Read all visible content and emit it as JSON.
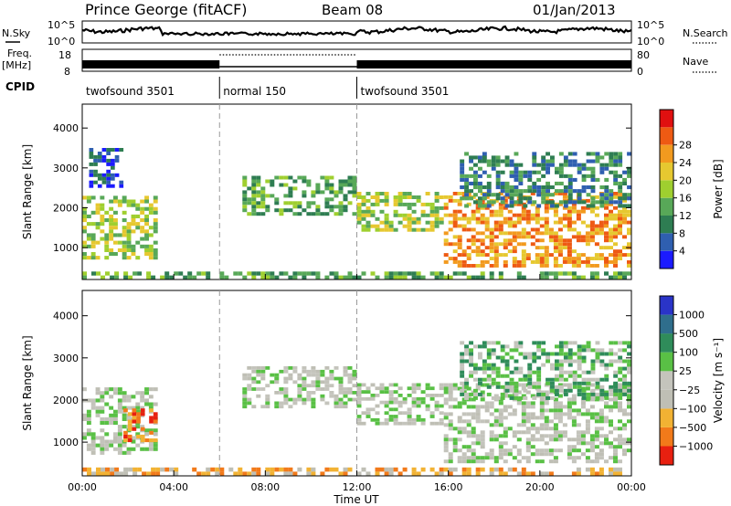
{
  "header": {
    "station": "Prince George (fitACF)",
    "beam": "Beam 08",
    "date": "01/Jan/2013"
  },
  "noise_panel": {
    "left_label": "N.Sky",
    "right_label": "N.Search",
    "left_ticks": [
      "10^5",
      "10^0"
    ],
    "right_ticks": [
      "10^5",
      "10^0"
    ]
  },
  "freq_panel": {
    "left_label_1": "Freq.",
    "left_label_2": "[MHz]",
    "right_label": "Nave",
    "left_ticks": [
      "18",
      "8"
    ],
    "right_ticks": [
      "80",
      "0"
    ]
  },
  "cpid": {
    "label": "CPID",
    "segments": [
      {
        "name": "twofsound 3501",
        "start_h": 0,
        "end_h": 6
      },
      {
        "name": "normal 150",
        "start_h": 6,
        "end_h": 12
      },
      {
        "name": "twofsound 3501",
        "start_h": 12,
        "end_h": 24
      }
    ]
  },
  "chart_data": [
    {
      "type": "heatmap",
      "title": "Power",
      "xlabel": "Time UT",
      "ylabel": "Slant Range [km]",
      "xlim": [
        0,
        24
      ],
      "ylim": [
        200,
        4600
      ],
      "x_ticks": [
        "00:00",
        "04:00",
        "08:00",
        "12:00",
        "16:00",
        "20:00",
        "00:00"
      ],
      "y_ticks": [
        1000,
        2000,
        3000,
        4000
      ],
      "colorbar": {
        "label": "Power [dB]",
        "ticks": [
          "4",
          "8",
          "12",
          "16",
          "20",
          "24",
          "28"
        ],
        "colors": [
          "#1b1bff",
          "#2f5fb0",
          "#2e7d52",
          "#58a858",
          "#9fcf2f",
          "#e6c830",
          "#f29a1f",
          "#ee5a13",
          "#e01010"
        ]
      },
      "regions": [
        {
          "t0": 0.0,
          "t1": 3.3,
          "r0": 700,
          "r1": 2300,
          "level": 4
        },
        {
          "t0": 0.3,
          "t1": 1.8,
          "r0": 2500,
          "r1": 3500,
          "level": 1
        },
        {
          "t0": 7.0,
          "t1": 12.0,
          "r0": 1800,
          "r1": 2800,
          "level": 3
        },
        {
          "t0": 12.0,
          "t1": 15.8,
          "r0": 1400,
          "r1": 2400,
          "level": 4
        },
        {
          "t0": 15.8,
          "t1": 24.0,
          "r0": 500,
          "r1": 2400,
          "level": 6
        },
        {
          "t0": 16.5,
          "t1": 24.0,
          "r0": 2000,
          "r1": 3400,
          "level": 2
        },
        {
          "t0": 0.0,
          "t1": 24.0,
          "r0": 200,
          "r1": 400,
          "level": 3
        }
      ]
    },
    {
      "type": "heatmap",
      "title": "Velocity",
      "xlabel": "Time UT",
      "ylabel": "Slant Range [km]",
      "xlim": [
        0,
        24
      ],
      "ylim": [
        200,
        4600
      ],
      "x_ticks": [
        "00:00",
        "04:00",
        "08:00",
        "12:00",
        "16:00",
        "20:00",
        "00:00"
      ],
      "y_ticks": [
        1000,
        2000,
        3000,
        4000
      ],
      "colorbar": {
        "label": "Velocity [m s⁻¹]",
        "ticks": [
          "1000",
          "500",
          "100",
          "25",
          "−25",
          "−100",
          "−500",
          "−1000"
        ],
        "colors": [
          "#2a34c8",
          "#2f6e8c",
          "#2f8c5a",
          "#59c045",
          "#c4c4bc",
          "#bfbfb5",
          "#f2b233",
          "#f27a1a",
          "#e82010"
        ]
      },
      "regions": [
        {
          "t0": 0.0,
          "t1": 3.3,
          "r0": 700,
          "r1": 2300,
          "level": 4
        },
        {
          "t0": 1.8,
          "t1": 3.3,
          "r0": 1000,
          "r1": 1800,
          "level": 7
        },
        {
          "t0": 7.0,
          "t1": 12.0,
          "r0": 1800,
          "r1": 2800,
          "level": 4
        },
        {
          "t0": 12.0,
          "t1": 15.8,
          "r0": 1400,
          "r1": 2400,
          "level": 4
        },
        {
          "t0": 15.8,
          "t1": 24.0,
          "r0": 500,
          "r1": 2400,
          "level": 4
        },
        {
          "t0": 16.5,
          "t1": 24.0,
          "r0": 2000,
          "r1": 3400,
          "level": 3
        },
        {
          "t0": 0.0,
          "t1": 24.0,
          "r0": 200,
          "r1": 400,
          "level": 6
        }
      ]
    }
  ]
}
